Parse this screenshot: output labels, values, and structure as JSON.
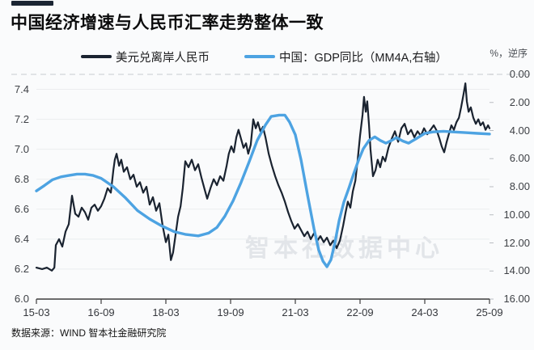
{
  "title": "中国经济增速与人民币汇率走势整体一致",
  "accents": {
    "top_bar_color": "#1b2533",
    "background": "#fafbfc",
    "gridline_color": "#ebedef",
    "top_gridline_color": "#c7cbd1",
    "axis_color": "#3d3d3d",
    "watermark_color": "#e2e5e9"
  },
  "legend": {
    "items": [
      {
        "label": "美元兑离岸人民币",
        "color": "#1a2330"
      },
      {
        "label": "中国：GDP同比（MM4A,右轴）",
        "color": "#4da3e2"
      }
    ]
  },
  "right_axis_note": "%，逆序",
  "watermark": "智本社数据中心",
  "source": "数据来源：WIND 智本社金融研究院",
  "chart_data": {
    "type": "line",
    "title": "中国经济增速与人民币汇率走势整体一致",
    "x_axis": {
      "unit": "months since 2015-03",
      "range": [
        0,
        126
      ],
      "tick_labels": [
        "15-03",
        "16-09",
        "18-03",
        "19-09",
        "21-03",
        "22-09",
        "24-03",
        "25-09"
      ],
      "tick_values": [
        0,
        18,
        36,
        54,
        72,
        90,
        108,
        126
      ]
    },
    "left_axis": {
      "range": [
        6.0,
        7.5
      ],
      "tick_labels": [
        "7.4",
        "7.2",
        "7.0",
        "6.8",
        "6.6",
        "6.4",
        "6.2",
        "6.0"
      ],
      "tick_values": [
        7.4,
        7.2,
        7.0,
        6.8,
        6.6,
        6.4,
        6.2,
        6.0
      ],
      "gridlines": true
    },
    "right_axis": {
      "range": [
        0,
        16
      ],
      "inverted": true,
      "label": "%，逆序",
      "tick_labels": [
        "0.00",
        "2.00",
        "4.00",
        "6.00",
        "8.00",
        "10.00",
        "12.00",
        "14.00",
        "16.00"
      ],
      "tick_values": [
        0,
        2,
        4,
        6,
        8,
        10,
        12,
        14,
        16
      ]
    },
    "series": [
      {
        "name": "美元兑离岸人民币",
        "axis": "left",
        "color": "#1a2330",
        "width": 2.2,
        "points": [
          [
            0,
            6.21
          ],
          [
            1.6,
            6.2
          ],
          [
            2.9,
            6.21
          ],
          [
            4.3,
            6.19
          ],
          [
            5.0,
            6.21
          ],
          [
            5.4,
            6.36
          ],
          [
            6.3,
            6.4
          ],
          [
            7.2,
            6.35
          ],
          [
            8.1,
            6.45
          ],
          [
            9.0,
            6.5
          ],
          [
            9.9,
            6.69
          ],
          [
            10.8,
            6.57
          ],
          [
            11.7,
            6.55
          ],
          [
            12.6,
            6.61
          ],
          [
            13.5,
            6.58
          ],
          [
            14.4,
            6.53
          ],
          [
            15.3,
            6.61
          ],
          [
            16.2,
            6.63
          ],
          [
            17.1,
            6.59
          ],
          [
            18.0,
            6.62
          ],
          [
            18.9,
            6.67
          ],
          [
            19.8,
            6.74
          ],
          [
            20.7,
            6.71
          ],
          [
            21.4,
            6.86
          ],
          [
            21.8,
            6.93
          ],
          [
            22.3,
            6.97
          ],
          [
            23.0,
            6.89
          ],
          [
            23.6,
            6.93
          ],
          [
            24.3,
            6.85
          ],
          [
            25.2,
            6.88
          ],
          [
            26.1,
            6.8
          ],
          [
            27.0,
            6.83
          ],
          [
            27.9,
            6.75
          ],
          [
            28.8,
            6.78
          ],
          [
            29.7,
            6.71
          ],
          [
            30.6,
            6.75
          ],
          [
            31.5,
            6.63
          ],
          [
            32.4,
            6.68
          ],
          [
            33.3,
            6.59
          ],
          [
            34.2,
            6.64
          ],
          [
            35.1,
            6.49
          ],
          [
            36.0,
            6.38
          ],
          [
            36.7,
            6.43
          ],
          [
            37.4,
            6.26
          ],
          [
            38.0,
            6.31
          ],
          [
            38.7,
            6.43
          ],
          [
            39.4,
            6.55
          ],
          [
            40.1,
            6.62
          ],
          [
            40.7,
            6.74
          ],
          [
            41.4,
            6.92
          ],
          [
            42.3,
            6.88
          ],
          [
            43.2,
            6.93
          ],
          [
            44.1,
            6.86
          ],
          [
            45.0,
            6.9
          ],
          [
            45.9,
            6.81
          ],
          [
            46.8,
            6.73
          ],
          [
            47.5,
            6.67
          ],
          [
            48.4,
            6.74
          ],
          [
            49.3,
            6.8
          ],
          [
            50.2,
            6.76
          ],
          [
            51.1,
            6.82
          ],
          [
            52.0,
            6.79
          ],
          [
            52.9,
            6.89
          ],
          [
            53.5,
            6.97
          ],
          [
            54.2,
            7.02
          ],
          [
            54.9,
            6.98
          ],
          [
            55.6,
            7.08
          ],
          [
            56.2,
            7.13
          ],
          [
            56.9,
            7.07
          ],
          [
            57.6,
            7.01
          ],
          [
            58.3,
            7.04
          ],
          [
            58.9,
            6.97
          ],
          [
            59.6,
            7.03
          ],
          [
            60.3,
            7.2
          ],
          [
            61.0,
            7.14
          ],
          [
            61.6,
            7.18
          ],
          [
            62.3,
            7.12
          ],
          [
            63.0,
            7.15
          ],
          [
            63.7,
            7.08
          ],
          [
            64.6,
            6.97
          ],
          [
            65.5,
            6.89
          ],
          [
            66.4,
            6.82
          ],
          [
            67.3,
            6.76
          ],
          [
            68.2,
            6.71
          ],
          [
            69.1,
            6.65
          ],
          [
            70.0,
            6.58
          ],
          [
            70.9,
            6.52
          ],
          [
            71.8,
            6.47
          ],
          [
            72.7,
            6.5
          ],
          [
            73.6,
            6.46
          ],
          [
            74.5,
            6.42
          ],
          [
            75.4,
            6.45
          ],
          [
            76.3,
            6.4
          ],
          [
            77.2,
            6.44
          ],
          [
            78.1,
            6.39
          ],
          [
            79.0,
            6.42
          ],
          [
            79.9,
            6.38
          ],
          [
            80.8,
            6.41
          ],
          [
            81.7,
            6.36
          ],
          [
            82.6,
            6.39
          ],
          [
            83.5,
            6.34
          ],
          [
            84.4,
            6.39
          ],
          [
            85.3,
            6.49
          ],
          [
            86.0,
            6.58
          ],
          [
            86.6,
            6.65
          ],
          [
            87.3,
            6.61
          ],
          [
            88.0,
            6.72
          ],
          [
            88.7,
            6.79
          ],
          [
            89.3,
            6.92
          ],
          [
            90.0,
            7.09
          ],
          [
            90.7,
            7.23
          ],
          [
            91.1,
            7.35
          ],
          [
            91.6,
            7.25
          ],
          [
            92.0,
            7.32
          ],
          [
            92.5,
            7.16
          ],
          [
            92.9,
            7.0
          ],
          [
            93.6,
            6.82
          ],
          [
            94.3,
            6.86
          ],
          [
            94.9,
            6.93
          ],
          [
            95.6,
            6.88
          ],
          [
            96.3,
            6.95
          ],
          [
            97.0,
            6.92
          ],
          [
            97.9,
            7.01
          ],
          [
            98.8,
            7.07
          ],
          [
            99.7,
            7.12
          ],
          [
            100.6,
            7.05
          ],
          [
            101.5,
            7.14
          ],
          [
            102.4,
            7.17
          ],
          [
            103.3,
            7.1
          ],
          [
            104.2,
            7.13
          ],
          [
            105.1,
            7.08
          ],
          [
            106.0,
            7.12
          ],
          [
            106.9,
            7.09
          ],
          [
            107.8,
            7.14
          ],
          [
            108.7,
            7.1
          ],
          [
            109.6,
            7.13
          ],
          [
            110.5,
            7.16
          ],
          [
            111.4,
            7.12
          ],
          [
            112.1,
            7.07
          ],
          [
            112.7,
            7.02
          ],
          [
            113.4,
            6.98
          ],
          [
            114.1,
            7.05
          ],
          [
            114.8,
            7.11
          ],
          [
            115.4,
            7.16
          ],
          [
            116.1,
            7.13
          ],
          [
            116.8,
            7.18
          ],
          [
            117.5,
            7.21
          ],
          [
            118.1,
            7.28
          ],
          [
            118.8,
            7.37
          ],
          [
            119.3,
            7.44
          ],
          [
            119.7,
            7.32
          ],
          [
            120.2,
            7.25
          ],
          [
            120.8,
            7.28
          ],
          [
            121.5,
            7.21
          ],
          [
            122.2,
            7.17
          ],
          [
            122.9,
            7.2
          ],
          [
            123.5,
            7.16
          ],
          [
            124.2,
            7.18
          ],
          [
            124.9,
            7.13
          ],
          [
            125.6,
            7.16
          ],
          [
            126,
            7.14
          ]
        ]
      },
      {
        "name": "中国：GDP同比（MM4A,右轴）",
        "axis": "right",
        "color": "#4da3e2",
        "width": 3.4,
        "points": [
          [
            0,
            8.3
          ],
          [
            2.3,
            7.9
          ],
          [
            4.5,
            7.5
          ],
          [
            6.8,
            7.3
          ],
          [
            9.0,
            7.2
          ],
          [
            11.3,
            7.1
          ],
          [
            13.5,
            7.1
          ],
          [
            15.8,
            7.2
          ],
          [
            18.0,
            7.4
          ],
          [
            21.4,
            8.0
          ],
          [
            24.8,
            8.8
          ],
          [
            28.1,
            9.7
          ],
          [
            31.5,
            10.3
          ],
          [
            34.9,
            10.8
          ],
          [
            38.3,
            11.2
          ],
          [
            41.6,
            11.4
          ],
          [
            45.0,
            11.5
          ],
          [
            47.9,
            11.3
          ],
          [
            50.2,
            10.9
          ],
          [
            52.4,
            10.1
          ],
          [
            54.7,
            9.0
          ],
          [
            56.9,
            7.7
          ],
          [
            59.2,
            6.2
          ],
          [
            61.4,
            4.7
          ],
          [
            63.7,
            3.6
          ],
          [
            65.3,
            3.0
          ],
          [
            67.5,
            2.9
          ],
          [
            69.1,
            2.9
          ],
          [
            70.4,
            3.4
          ],
          [
            72.0,
            4.3
          ],
          [
            73.6,
            6.1
          ],
          [
            75.4,
            8.6
          ],
          [
            77.2,
            11.0
          ],
          [
            78.5,
            12.5
          ],
          [
            79.7,
            13.3
          ],
          [
            80.8,
            13.7
          ],
          [
            81.9,
            13.2
          ],
          [
            83.0,
            12.0
          ],
          [
            84.2,
            10.4
          ],
          [
            85.5,
            9.1
          ],
          [
            86.9,
            8.1
          ],
          [
            88.2,
            7.1
          ],
          [
            89.6,
            6.1
          ],
          [
            90.9,
            5.3
          ],
          [
            92.5,
            4.7
          ],
          [
            94.1,
            4.45
          ],
          [
            95.6,
            4.7
          ],
          [
            97.2,
            4.9
          ],
          [
            98.8,
            4.7
          ],
          [
            100.1,
            4.5
          ],
          [
            101.9,
            4.75
          ],
          [
            103.5,
            4.9
          ],
          [
            105.8,
            4.55
          ],
          [
            108.0,
            4.2
          ],
          [
            110.3,
            4.1
          ],
          [
            113.2,
            4.05
          ],
          [
            115.9,
            4.1
          ],
          [
            119.3,
            4.15
          ],
          [
            122.7,
            4.2
          ],
          [
            126,
            4.25
          ]
        ]
      }
    ]
  }
}
